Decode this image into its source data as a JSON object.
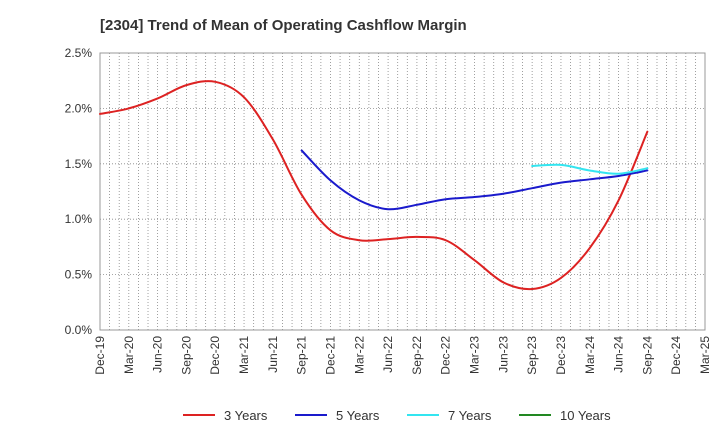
{
  "chart_data": {
    "type": "line",
    "title": "[2304]  Trend of Mean of Operating Cashflow Margin",
    "xlabel": "",
    "ylabel": "",
    "x_ticks": [
      "Dec-19",
      "Mar-20",
      "Jun-20",
      "Sep-20",
      "Dec-20",
      "Mar-21",
      "Jun-21",
      "Sep-21",
      "Dec-21",
      "Mar-22",
      "Jun-22",
      "Sep-22",
      "Dec-22",
      "Mar-23",
      "Jun-23",
      "Sep-23",
      "Dec-23",
      "Mar-24",
      "Jun-24",
      "Sep-24",
      "Dec-24",
      "Mar-25"
    ],
    "y_ticks": [
      "0.0%",
      "0.5%",
      "1.0%",
      "1.5%",
      "2.0%",
      "2.5%"
    ],
    "ylim": [
      0,
      2.5
    ],
    "y_unit": "%",
    "grid": true,
    "legend_position": "bottom",
    "series": [
      {
        "name": "3 Years",
        "color": "#dd2222",
        "x": [
          "Dec-19",
          "Mar-20",
          "Jun-20",
          "Sep-20",
          "Dec-20",
          "Mar-21",
          "Jun-21",
          "Sep-21",
          "Dec-21",
          "Mar-22",
          "Jun-22",
          "Sep-22",
          "Dec-22",
          "Mar-23",
          "Jun-23",
          "Sep-23",
          "Dec-23",
          "Mar-24",
          "Jun-24",
          "Sep-24"
        ],
        "values": [
          1.95,
          2.0,
          2.09,
          2.21,
          2.24,
          2.1,
          1.72,
          1.22,
          0.9,
          0.81,
          0.82,
          0.84,
          0.81,
          0.63,
          0.43,
          0.37,
          0.47,
          0.74,
          1.17,
          1.79
        ]
      },
      {
        "name": "5 Years",
        "color": "#1a1acc",
        "x": [
          "Sep-21",
          "Dec-21",
          "Mar-22",
          "Jun-22",
          "Sep-22",
          "Dec-22",
          "Mar-23",
          "Jun-23",
          "Sep-23",
          "Dec-23",
          "Mar-24",
          "Jun-24",
          "Sep-24"
        ],
        "values": [
          1.62,
          1.35,
          1.17,
          1.09,
          1.13,
          1.18,
          1.2,
          1.23,
          1.28,
          1.33,
          1.36,
          1.39,
          1.44
        ]
      },
      {
        "name": "7 Years",
        "color": "#33e5f0",
        "x": [
          "Sep-23",
          "Dec-23",
          "Mar-24",
          "Jun-24",
          "Sep-24"
        ],
        "values": [
          1.48,
          1.49,
          1.44,
          1.41,
          1.46
        ]
      },
      {
        "name": "10 Years",
        "color": "#228822",
        "x": [],
        "values": []
      }
    ]
  }
}
